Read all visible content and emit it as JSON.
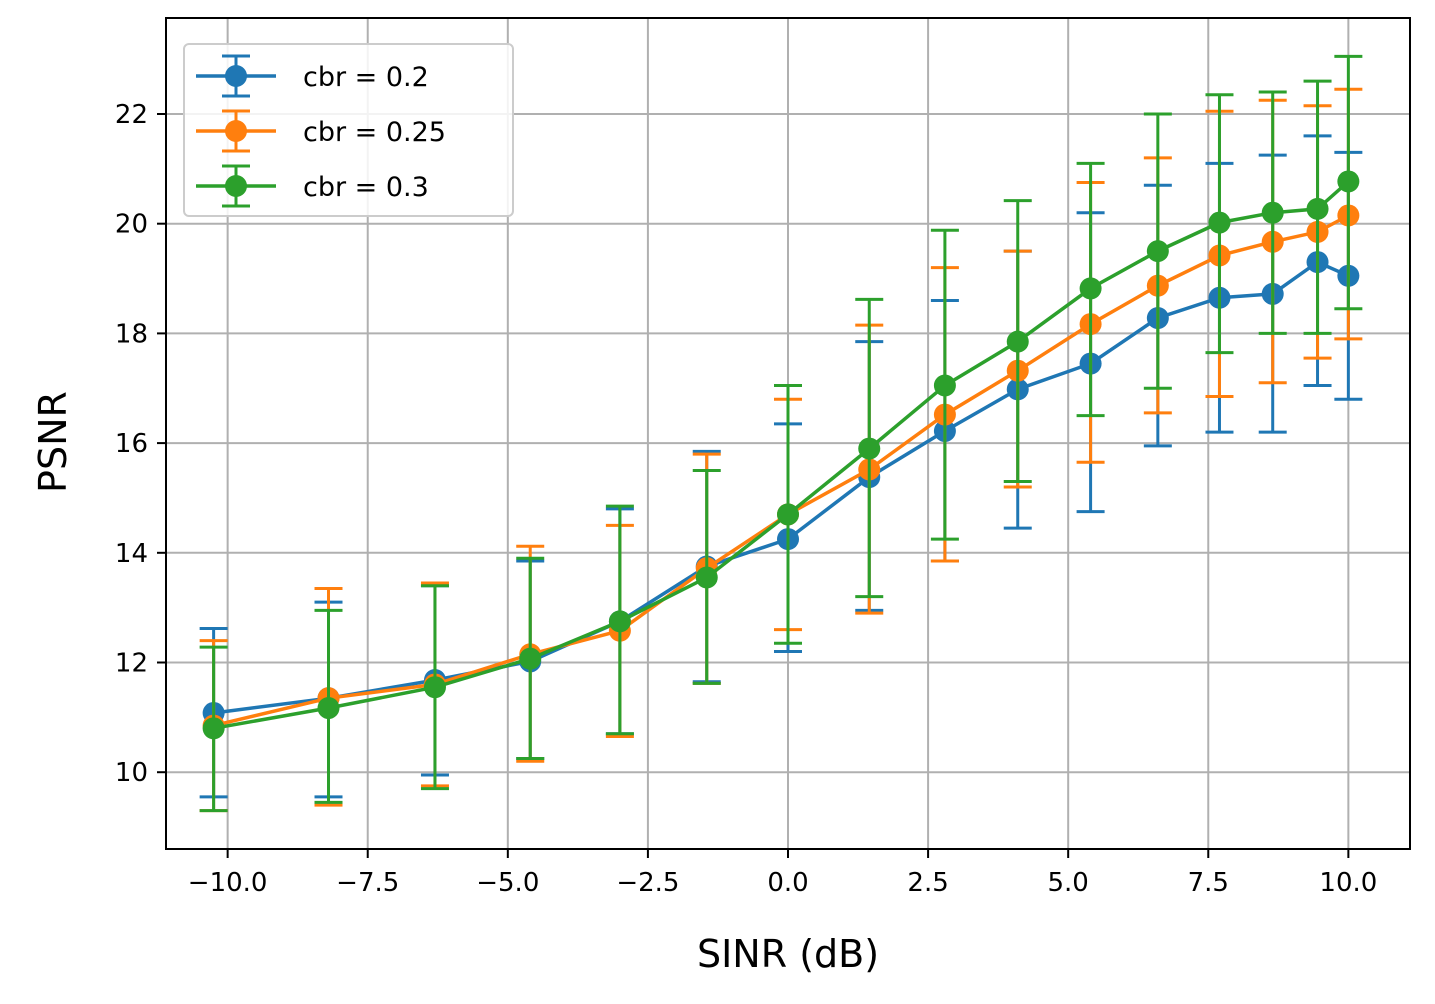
{
  "chart_data": {
    "type": "line",
    "title": "",
    "xlabel": "SINR (dB)",
    "ylabel": "PSNR",
    "xlim": [
      -11.1,
      11.1
    ],
    "ylim": [
      8.6,
      23.75
    ],
    "grid": true,
    "legend_position": "top-left",
    "xticks": [
      -10.0,
      -7.5,
      -5.0,
      -2.5,
      0.0,
      2.5,
      5.0,
      7.5,
      10.0
    ],
    "xtick_labels": [
      "−10.0",
      "−7.5",
      "−5.0",
      "−2.5",
      "0.0",
      "2.5",
      "5.0",
      "7.5",
      "10.0"
    ],
    "yticks": [
      10,
      12,
      14,
      16,
      18,
      20,
      22
    ],
    "ytick_labels": [
      "10",
      "12",
      "14",
      "16",
      "18",
      "20",
      "22"
    ],
    "x": [
      -10.25,
      -8.2,
      -6.3,
      -4.6,
      -3.0,
      -1.45,
      0.0,
      1.45,
      2.8,
      4.1,
      5.4,
      6.6,
      7.7,
      8.65,
      9.45,
      10.0
    ],
    "series": [
      {
        "name": "cbr = 0.2",
        "color": "#1f77b4",
        "values": [
          11.08,
          11.35,
          11.68,
          12.02,
          12.75,
          13.75,
          14.25,
          15.38,
          16.22,
          16.98,
          17.45,
          18.28,
          18.65,
          18.72,
          19.3,
          19.05
        ],
        "err_low": [
          9.55,
          9.55,
          9.95,
          10.25,
          10.7,
          11.65,
          12.2,
          12.95,
          13.85,
          14.45,
          14.75,
          15.95,
          16.2,
          16.2,
          17.05,
          16.8
        ],
        "err_high": [
          12.62,
          13.1,
          13.4,
          13.85,
          14.8,
          15.85,
          16.35,
          17.85,
          18.6,
          19.5,
          20.2,
          20.7,
          21.1,
          21.25,
          21.6,
          21.3
        ]
      },
      {
        "name": "cbr = 0.25",
        "color": "#ff7f0e",
        "values": [
          10.85,
          11.35,
          11.6,
          12.15,
          12.58,
          13.72,
          14.7,
          15.52,
          16.52,
          17.32,
          18.17,
          18.87,
          19.42,
          19.67,
          19.85,
          20.15
        ],
        "err_low": [
          9.3,
          9.4,
          9.75,
          10.2,
          10.65,
          11.62,
          12.6,
          12.9,
          13.85,
          15.2,
          15.65,
          16.55,
          16.85,
          17.1,
          17.55,
          17.9
        ],
        "err_high": [
          12.4,
          13.35,
          13.45,
          14.12,
          14.5,
          15.8,
          16.8,
          18.15,
          19.2,
          19.5,
          20.75,
          21.2,
          22.05,
          22.25,
          22.15,
          22.45
        ]
      },
      {
        "name": "cbr = 0.3",
        "color": "#2ca02c",
        "values": [
          10.8,
          11.17,
          11.55,
          12.07,
          12.75,
          13.55,
          14.7,
          15.9,
          17.05,
          17.85,
          18.82,
          19.5,
          20.02,
          20.2,
          20.27,
          20.77
        ],
        "err_low": [
          9.3,
          9.45,
          9.7,
          10.25,
          10.7,
          11.62,
          12.35,
          13.2,
          14.25,
          15.3,
          16.5,
          17.0,
          17.65,
          18.0,
          18.0,
          18.45
        ],
        "err_high": [
          12.28,
          12.95,
          13.4,
          13.9,
          14.85,
          15.5,
          17.05,
          18.62,
          19.88,
          20.42,
          21.1,
          22.0,
          22.35,
          22.4,
          22.6,
          23.05
        ]
      }
    ]
  }
}
